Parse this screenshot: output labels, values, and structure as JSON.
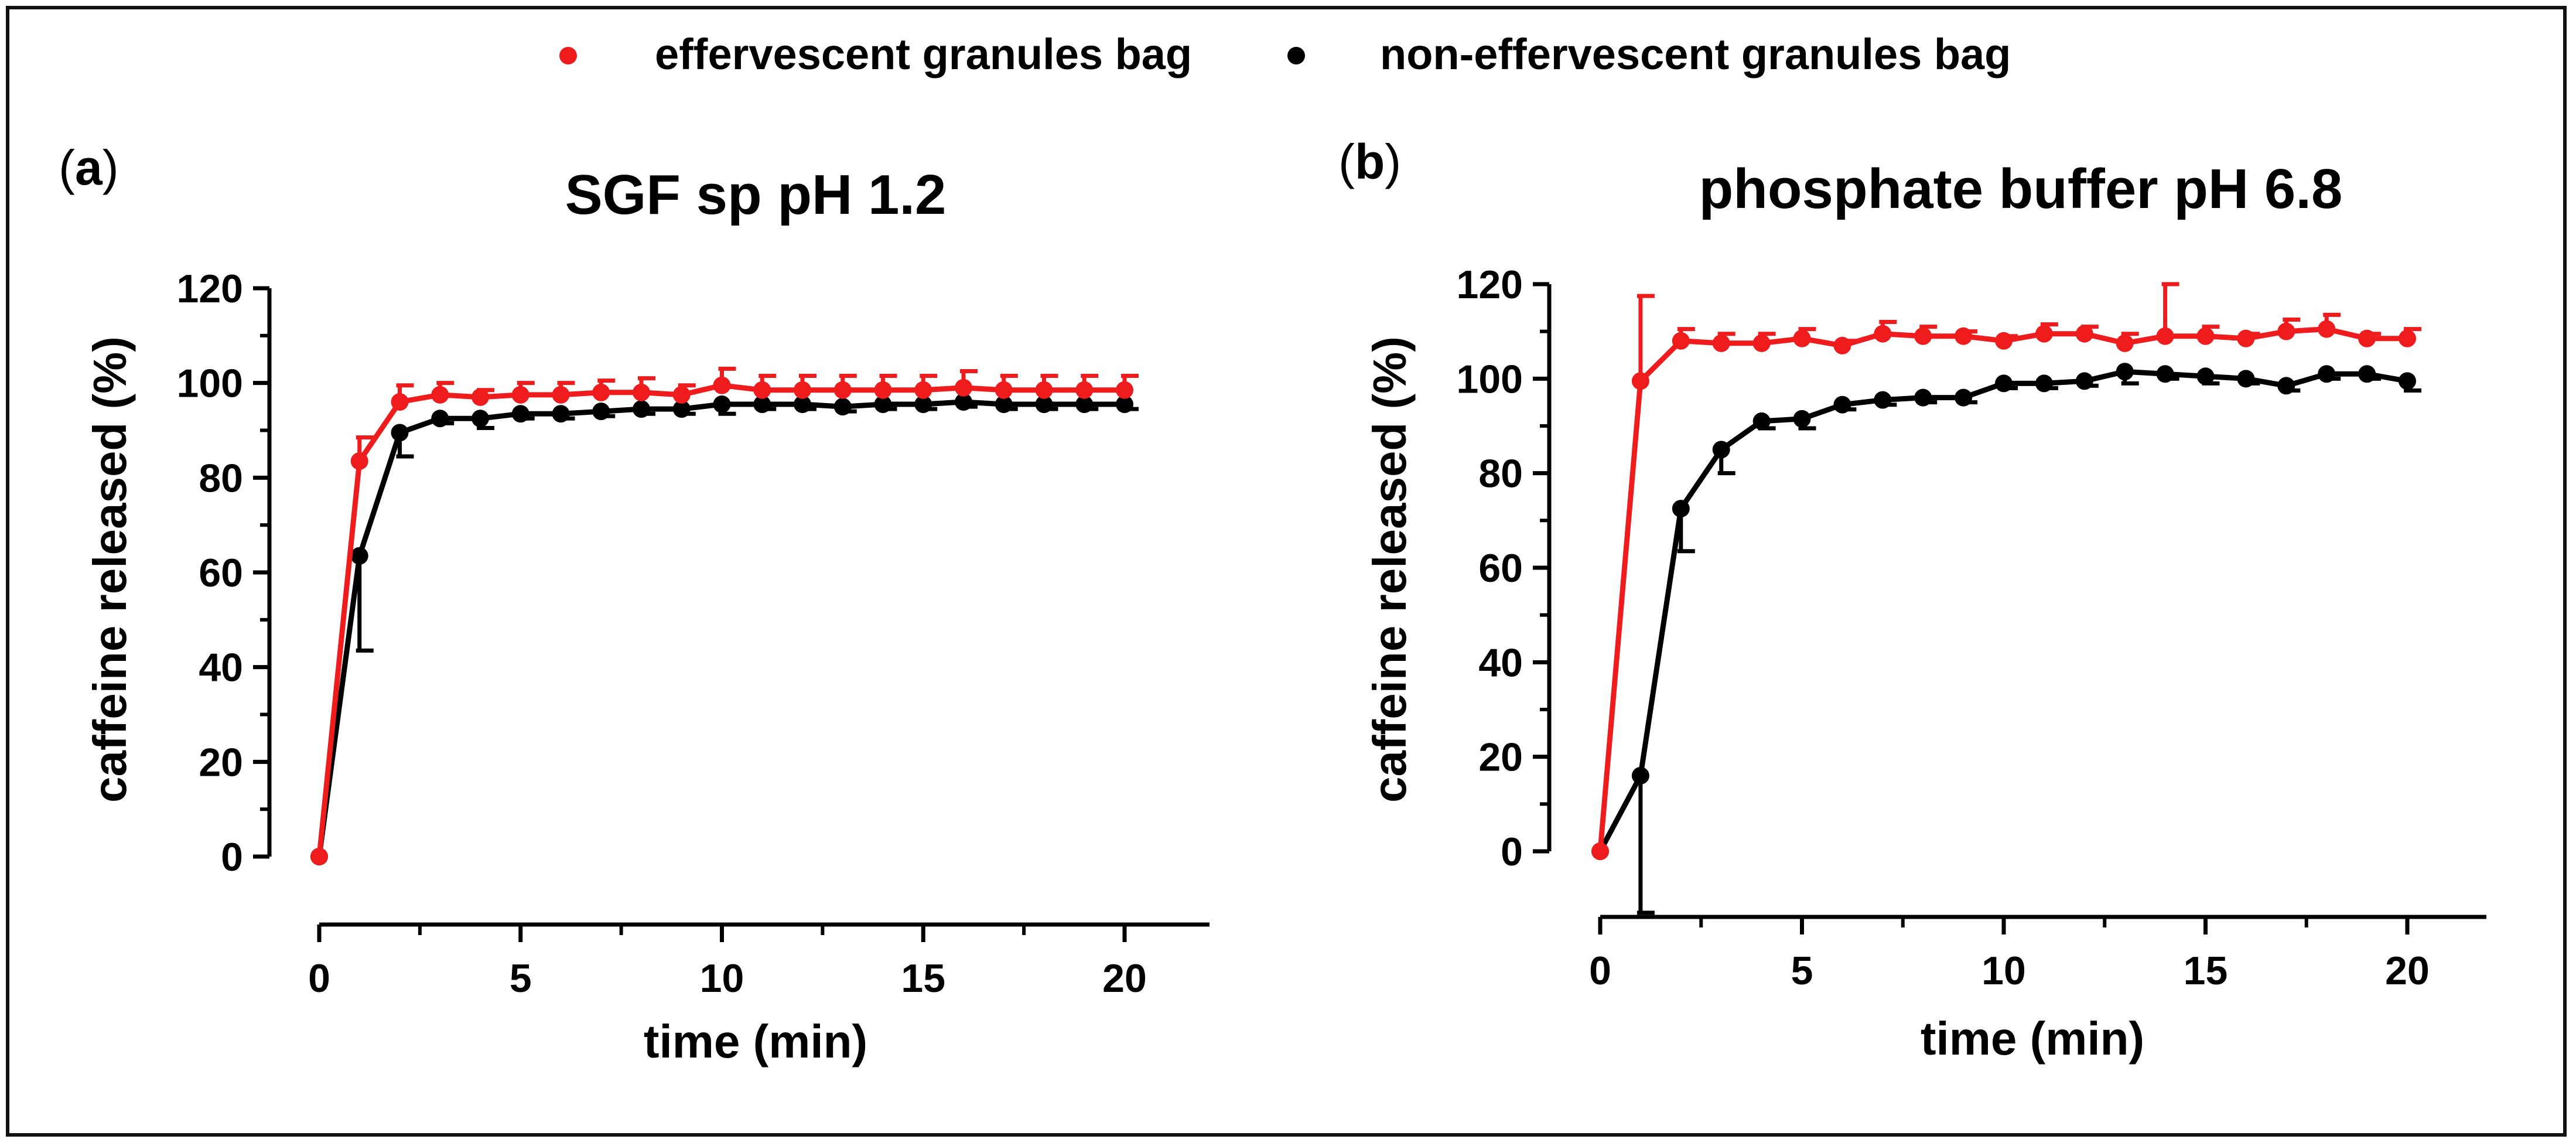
{
  "legend": [
    {
      "label": "effervescent granules bag",
      "color": "#ee1c1c"
    },
    {
      "label": "non-effervescent granules bag",
      "color": "#000000"
    }
  ],
  "chart_data": [
    {
      "type": "line",
      "panel": "a",
      "title": "SGF sp pH 1.2",
      "xlabel": "time (min)",
      "ylabel": "caffeine released (%)",
      "xlim": [
        0,
        20
      ],
      "ylim": [
        0,
        120
      ],
      "xticks": [
        0,
        5,
        10,
        15,
        20
      ],
      "yticks": [
        0,
        20,
        40,
        60,
        80,
        100,
        120
      ],
      "grid": false,
      "legend_position": "top",
      "series": [
        {
          "name": "effervescent granules bag",
          "color": "#ee1c1c",
          "x": [
            0,
            1,
            2,
            3,
            4,
            5,
            6,
            7,
            8,
            9,
            10,
            11,
            12,
            13,
            14,
            15,
            16,
            17,
            18,
            19,
            20
          ],
          "y": [
            0,
            83.5,
            96,
            97.5,
            97,
            97.5,
            97.5,
            98,
            98,
            97.5,
            99.5,
            98.5,
            98.5,
            98.5,
            98.5,
            98.5,
            99,
            98.5,
            98.5,
            98.5,
            98.5
          ],
          "err": [
            0,
            5,
            3.5,
            2.5,
            1.5,
            2.5,
            2.5,
            2.5,
            3,
            2,
            3.5,
            3,
            3,
            3,
            3,
            3,
            3.5,
            3,
            3,
            3,
            3
          ]
        },
        {
          "name": "non-effervescent granules bag",
          "color": "#000000",
          "x": [
            0,
            1,
            2,
            3,
            4,
            5,
            6,
            7,
            8,
            9,
            10,
            11,
            12,
            13,
            14,
            15,
            16,
            17,
            18,
            19,
            20
          ],
          "y": [
            0,
            63.5,
            89.5,
            92.5,
            92.5,
            93.5,
            93.5,
            94,
            94.5,
            94.5,
            95.5,
            95.5,
            95.5,
            95,
            95.5,
            95.5,
            96,
            95.5,
            95.5,
            95.5,
            95.5
          ],
          "err": [
            0,
            20,
            5,
            1,
            2,
            1,
            1,
            1,
            1,
            1,
            2,
            1,
            1,
            1,
            1,
            1,
            1,
            1,
            1,
            1,
            1
          ]
        }
      ]
    },
    {
      "type": "line",
      "panel": "b",
      "title": "phosphate buffer pH 6.8",
      "xlabel": "time (min)",
      "ylabel": "caffeine released (%)",
      "xlim": [
        0,
        20
      ],
      "ylim": [
        0,
        120
      ],
      "xticks": [
        0,
        5,
        10,
        15,
        20
      ],
      "yticks": [
        0,
        20,
        40,
        60,
        80,
        100,
        120
      ],
      "grid": false,
      "legend_position": "top",
      "series": [
        {
          "name": "effervescent granules bag",
          "color": "#ee1c1c",
          "x": [
            0,
            1,
            2,
            3,
            4,
            5,
            6,
            7,
            8,
            9,
            10,
            11,
            12,
            13,
            14,
            15,
            16,
            17,
            18,
            19,
            20
          ],
          "y": [
            0,
            99.5,
            108,
            107.5,
            107.5,
            108.5,
            107,
            109.5,
            109,
            109,
            108,
            109.5,
            109.5,
            107.5,
            109,
            109,
            108.5,
            110,
            110.5,
            108.5,
            108.5
          ],
          "err": [
            0,
            18,
            2.5,
            2,
            2,
            2,
            1,
            2.5,
            2,
            1,
            1,
            2,
            1.5,
            2,
            11,
            2,
            1,
            2.5,
            3,
            1,
            2
          ]
        },
        {
          "name": "non-effervescent granules bag",
          "color": "#000000",
          "x": [
            0,
            1,
            2,
            3,
            4,
            5,
            6,
            7,
            8,
            9,
            10,
            11,
            12,
            13,
            14,
            15,
            16,
            17,
            18,
            19,
            20
          ],
          "y": [
            0,
            16,
            72.5,
            85,
            91,
            91.5,
            94.5,
            95.5,
            96,
            96,
            99,
            99,
            99.5,
            101.5,
            101,
            100.5,
            100,
            98.5,
            101,
            101,
            99.5
          ],
          "err": [
            0,
            29,
            9,
            5,
            1.5,
            2,
            1,
            1,
            1,
            1,
            1,
            1,
            1,
            2.5,
            1,
            1.5,
            1,
            1,
            1,
            1,
            2
          ]
        }
      ]
    }
  ]
}
